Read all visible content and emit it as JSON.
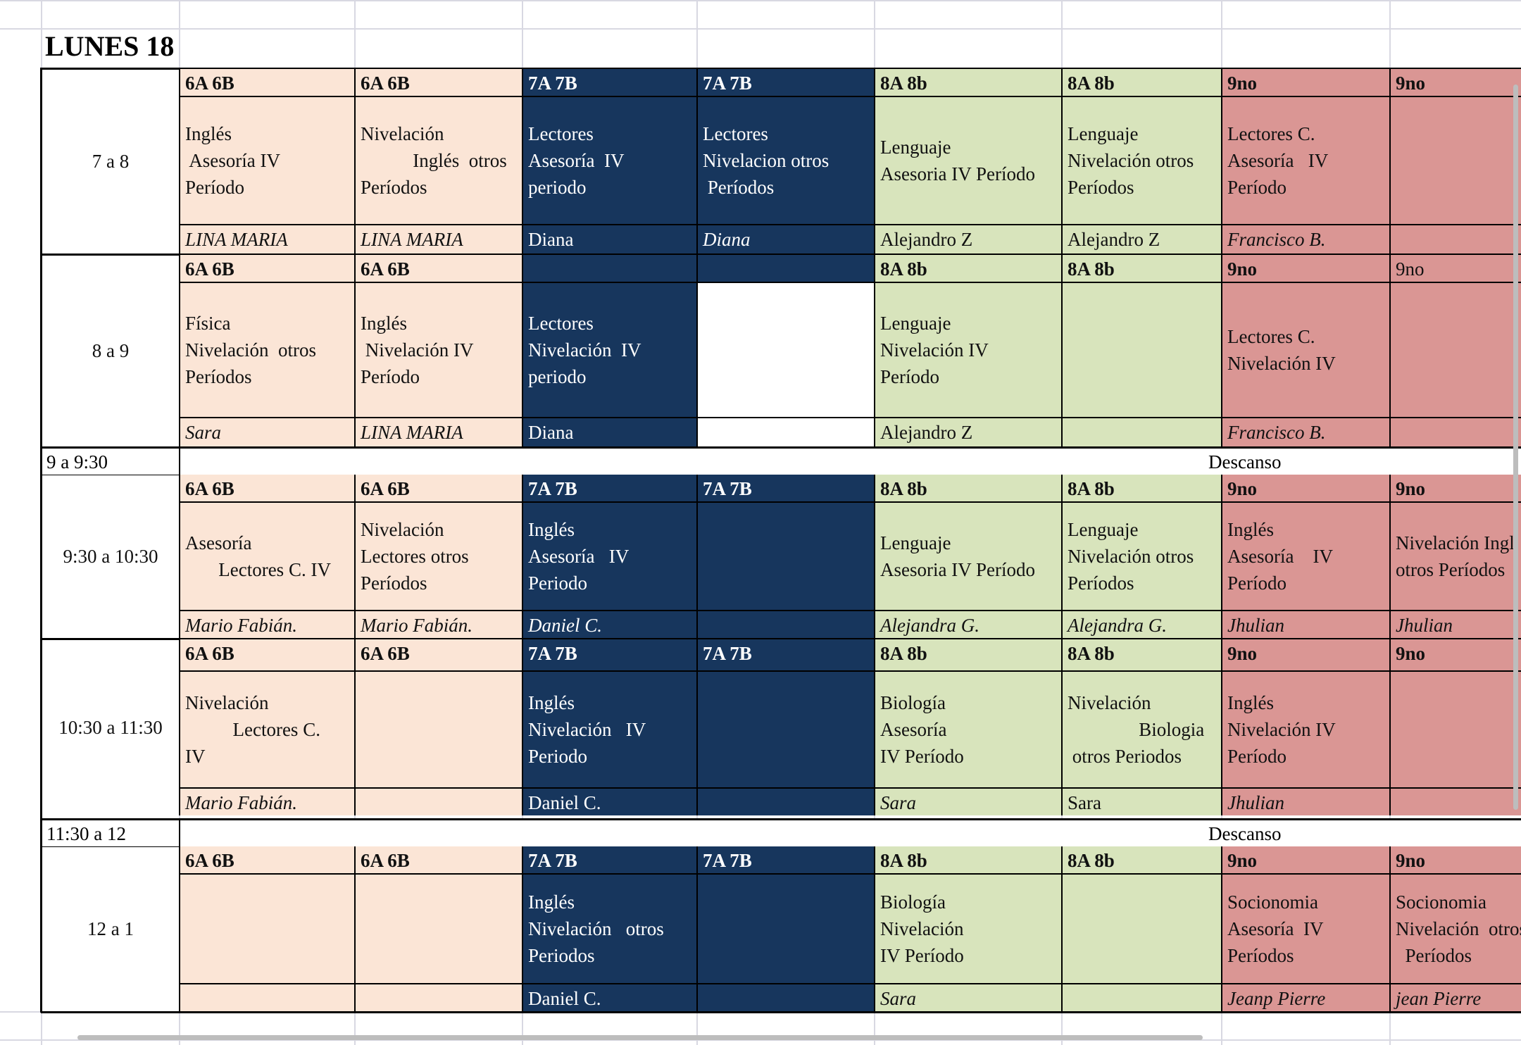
{
  "sheet": {
    "title": "LUNES 18",
    "break_label": "Descanso",
    "slots": [
      {
        "time": "7 a 8",
        "cells": [
          {
            "group": "6A 6B",
            "subject": [
              "Inglés",
              " Asesoría IV",
              "Período"
            ],
            "teacher": "LINA MARIA",
            "teacher_italic": true,
            "color": "peach"
          },
          {
            "group": "6A 6B",
            "subject": [
              "Nivelación",
              "           Inglés  otros",
              "Períodos"
            ],
            "teacher": "LINA MARIA",
            "teacher_italic": true,
            "color": "peach"
          },
          {
            "group": "7A 7B",
            "subject": [
              "Lectores",
              "Asesoría  IV",
              "periodo"
            ],
            "teacher": "Diana",
            "teacher_italic": false,
            "color": "navy"
          },
          {
            "group": "7A 7B",
            "subject": [
              "Lectores",
              "Nivelacion otros",
              " Períodos"
            ],
            "teacher": "Diana",
            "teacher_italic": true,
            "color": "navy"
          },
          {
            "group": "8A 8b",
            "subject": [
              "Lenguaje",
              "Asesoria IV Período"
            ],
            "teacher": "Alejandro Z",
            "teacher_italic": false,
            "color": "green"
          },
          {
            "group": "8A 8b",
            "subject": [
              "Lenguaje",
              "Nivelación otros",
              "Períodos"
            ],
            "teacher": "Alejandro Z",
            "teacher_italic": false,
            "color": "green"
          },
          {
            "group": "9no",
            "subject": [
              "Lectores C.",
              "Asesoría   IV",
              "Período"
            ],
            "teacher": "Francisco B.",
            "teacher_italic": true,
            "color": "red"
          },
          {
            "group": "9no",
            "subject": [],
            "teacher": "",
            "teacher_italic": false,
            "color": "red"
          }
        ]
      },
      {
        "time": "8 a 9",
        "cells": [
          {
            "group": "6A 6B",
            "subject": [
              "Física",
              "Nivelación  otros",
              "Períodos"
            ],
            "teacher": "Sara",
            "teacher_italic": true,
            "color": "peach"
          },
          {
            "group": "6A 6B",
            "subject": [
              "Inglés",
              " Nivelación IV",
              "Período"
            ],
            "teacher": "LINA MARIA",
            "teacher_italic": true,
            "color": "peach"
          },
          {
            "group": "",
            "subject": [
              "Lectores",
              "Nivelación  IV",
              "periodo"
            ],
            "teacher": "Diana",
            "teacher_italic": false,
            "color": "navy"
          },
          {
            "group": "",
            "subject": [],
            "teacher": "",
            "teacher_italic": false,
            "color": "navy-empty"
          },
          {
            "group": "8A 8b",
            "subject": [
              "Lenguaje",
              "Nivelación IV",
              "Período"
            ],
            "teacher": "Alejandro Z",
            "teacher_italic": false,
            "color": "green"
          },
          {
            "group": "8A 8b",
            "subject": [],
            "teacher": "",
            "teacher_italic": false,
            "color": "green"
          },
          {
            "group": "9no",
            "subject": [
              "Lectores C.",
              "Nivelación IV"
            ],
            "teacher": "Francisco B.",
            "teacher_italic": true,
            "color": "red"
          },
          {
            "group": "9no",
            "subject": [],
            "teacher": "",
            "teacher_italic": false,
            "color": "red",
            "group_plain": true
          }
        ]
      },
      {
        "time": "9:30 a 10:30",
        "cells": [
          {
            "group": "6A 6B",
            "subject": [
              "Asesoría",
              "       Lectores C. IV"
            ],
            "teacher": "Mario Fabián.",
            "teacher_italic": true,
            "color": "peach"
          },
          {
            "group": "6A 6B",
            "subject": [
              "Nivelación",
              "Lectores otros",
              "Períodos"
            ],
            "teacher": "Mario Fabián.",
            "teacher_italic": true,
            "color": "peach"
          },
          {
            "group": "7A 7B",
            "subject": [
              "Inglés",
              "Asesoría   IV",
              "Periodo"
            ],
            "teacher": "Daniel C.",
            "teacher_italic": true,
            "color": "navy"
          },
          {
            "group": "7A 7B",
            "subject": [],
            "teacher": "",
            "teacher_italic": false,
            "color": "navy"
          },
          {
            "group": "8A 8b",
            "subject": [
              "Lenguaje",
              "Asesoria IV Período"
            ],
            "teacher": "Alejandra G.",
            "teacher_italic": true,
            "color": "green"
          },
          {
            "group": "8A 8b",
            "subject": [
              "Lenguaje",
              "Nivelación otros",
              "Períodos"
            ],
            "teacher": "Alejandra G.",
            "teacher_italic": true,
            "color": "green"
          },
          {
            "group": "9no",
            "subject": [
              "Inglés",
              "Asesoría    IV",
              "Período"
            ],
            "teacher": "Jhulian",
            "teacher_italic": true,
            "color": "red"
          },
          {
            "group": "9no",
            "subject": [
              "Nivelación Ingl",
              "otros Períodos"
            ],
            "teacher": "Jhulian",
            "teacher_italic": true,
            "color": "red"
          }
        ]
      },
      {
        "time": "10:30 a 11:30",
        "cells": [
          {
            "group": "6A 6B",
            "subject": [
              "Nivelación",
              "          Lectores C.",
              "IV"
            ],
            "teacher": "Mario Fabián.",
            "teacher_italic": true,
            "color": "peach"
          },
          {
            "group": "6A 6B",
            "subject": [],
            "teacher": "",
            "teacher_italic": false,
            "color": "peach"
          },
          {
            "group": "7A 7B",
            "subject": [
              "Inglés",
              "Nivelación   IV",
              "Periodo"
            ],
            "teacher": "Daniel C.",
            "teacher_italic": false,
            "color": "navy"
          },
          {
            "group": "7A 7B",
            "subject": [],
            "teacher": "",
            "teacher_italic": false,
            "color": "navy"
          },
          {
            "group": "8A 8b",
            "subject": [
              "Biología",
              "Asesoría",
              "IV Período"
            ],
            "teacher": "Sara",
            "teacher_italic": true,
            "color": "green"
          },
          {
            "group": "8A 8b",
            "subject": [
              "Nivelación",
              "               Biologia",
              " otros Periodos"
            ],
            "teacher": "Sara",
            "teacher_italic": false,
            "color": "green"
          },
          {
            "group": "9no",
            "subject": [
              "Inglés",
              "Nivelación IV",
              "Período"
            ],
            "teacher": "Jhulian",
            "teacher_italic": true,
            "color": "red"
          },
          {
            "group": "9no",
            "subject": [],
            "teacher": "",
            "teacher_italic": false,
            "color": "red"
          }
        ]
      },
      {
        "time": "12 a 1",
        "cells": [
          {
            "group": "6A 6B",
            "subject": [],
            "teacher": "",
            "teacher_italic": false,
            "color": "peach"
          },
          {
            "group": "6A 6B",
            "subject": [],
            "teacher": "",
            "teacher_italic": false,
            "color": "peach"
          },
          {
            "group": "7A 7B",
            "subject": [
              "Inglés",
              "Nivelación   otros",
              "Periodos"
            ],
            "teacher": "Daniel C.",
            "teacher_italic": false,
            "color": "navy"
          },
          {
            "group": "7A 7B",
            "subject": [],
            "teacher": "",
            "teacher_italic": false,
            "color": "navy"
          },
          {
            "group": "8A 8b",
            "subject": [
              "Biología",
              "Nivelación",
              "IV Período"
            ],
            "teacher": "Sara",
            "teacher_italic": true,
            "color": "green"
          },
          {
            "group": "8A 8b",
            "subject": [],
            "teacher": "",
            "teacher_italic": false,
            "color": "green"
          },
          {
            "group": "9no",
            "subject": [
              "Socionomia",
              "Asesoría  IV",
              "Períodos"
            ],
            "teacher": "Jeanp Pierre",
            "teacher_italic": true,
            "color": "red"
          },
          {
            "group": "9no",
            "subject": [
              "Socionomia",
              "Nivelación  otros",
              "  Períodos"
            ],
            "teacher": "jean Pierre",
            "teacher_italic": true,
            "color": "red"
          }
        ]
      }
    ],
    "breaks": [
      {
        "time": "9 a 9:30",
        "label": "Descanso"
      },
      {
        "time": "11:30 a 12",
        "label": "Descanso"
      }
    ],
    "colors": {
      "peach": "#fbe5d6",
      "navy": "#17365d",
      "green": "#d8e4bc",
      "red": "#da9694",
      "grid": "#d8d8e2"
    }
  }
}
